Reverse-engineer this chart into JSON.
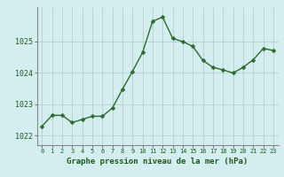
{
  "x": [
    0,
    1,
    2,
    3,
    4,
    5,
    6,
    7,
    8,
    9,
    10,
    11,
    12,
    13,
    14,
    15,
    16,
    17,
    18,
    19,
    20,
    21,
    22,
    23
  ],
  "y": [
    1022.3,
    1022.65,
    1022.65,
    1022.42,
    1022.52,
    1022.62,
    1022.62,
    1022.88,
    1023.48,
    1024.05,
    1024.65,
    1025.65,
    1025.78,
    1025.1,
    1025.0,
    1024.85,
    1024.4,
    1024.18,
    1024.1,
    1024.0,
    1024.18,
    1024.42,
    1024.78,
    1024.72
  ],
  "line_color": "#2d6a2d",
  "marker_color": "#2d6a2d",
  "bg_color": "#d4eef0",
  "grid_color": "#b0c8c8",
  "axis_label_color": "#1a5a1a",
  "tick_label_color": "#1a5a1a",
  "xlabel": "Graphe pression niveau de la mer (hPa)",
  "ylim": [
    1021.7,
    1026.1
  ],
  "yticks": [
    1022,
    1023,
    1024,
    1025
  ],
  "xticks": [
    0,
    1,
    2,
    3,
    4,
    5,
    6,
    7,
    8,
    9,
    10,
    11,
    12,
    13,
    14,
    15,
    16,
    17,
    18,
    19,
    20,
    21,
    22,
    23
  ],
  "figsize": [
    3.2,
    2.0
  ],
  "dpi": 100,
  "marker_size": 2.5,
  "line_width": 1.0
}
